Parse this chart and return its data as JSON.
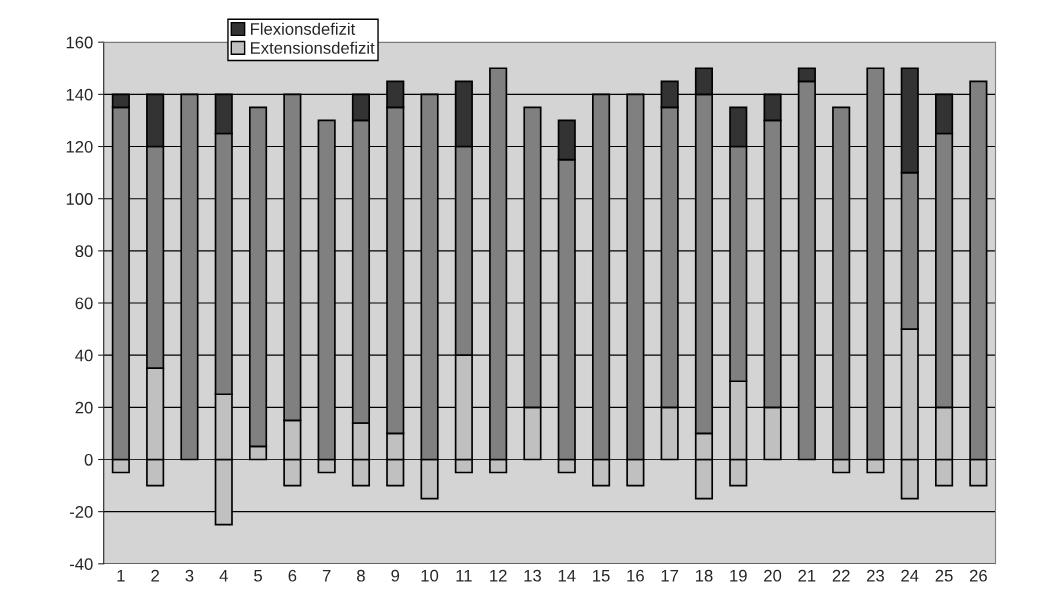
{
  "chart_data": {
    "type": "bar",
    "stacked": true,
    "categories": [
      "1",
      "2",
      "3",
      "4",
      "5",
      "6",
      "7",
      "8",
      "9",
      "10",
      "11",
      "12",
      "13",
      "14",
      "15",
      "16",
      "17",
      "18",
      "19",
      "20",
      "21",
      "22",
      "23",
      "24",
      "25",
      "26"
    ],
    "series": [
      {
        "color": "#c0c0c0",
        "values": [
          -5,
          -10,
          0,
          -25,
          0,
          -10,
          -5,
          -10,
          -10,
          -15,
          -5,
          -5,
          0,
          -5,
          -10,
          -10,
          0,
          -15,
          -10,
          0,
          0,
          -5,
          -5,
          -15,
          -10,
          -10
        ]
      },
      {
        "name": "Extensionsdefizit",
        "color": "#c0c0c0",
        "values": [
          0,
          35,
          0,
          25,
          5,
          15,
          0,
          14,
          10,
          0,
          40,
          0,
          20,
          0,
          0,
          0,
          20,
          10,
          30,
          20,
          0,
          0,
          0,
          50,
          20,
          0
        ]
      },
      {
        "color": "#808080",
        "values": [
          135,
          85,
          140,
          100,
          130,
          125,
          130,
          116,
          125,
          140,
          80,
          150,
          115,
          115,
          140,
          140,
          115,
          130,
          90,
          110,
          145,
          135,
          150,
          60,
          105,
          145
        ]
      },
      {
        "name": "Flexionsdefizit",
        "color": "#333333",
        "values": [
          5,
          20,
          0,
          15,
          0,
          0,
          0,
          10,
          10,
          0,
          25,
          0,
          0,
          15,
          0,
          0,
          10,
          10,
          15,
          10,
          5,
          0,
          0,
          40,
          15,
          0
        ]
      }
    ],
    "ylim": [
      -40,
      160
    ],
    "yticks": [
      -40,
      -20,
      0,
      20,
      40,
      60,
      80,
      100,
      120,
      140,
      160
    ],
    "grid": "y",
    "legend": "top left"
  }
}
